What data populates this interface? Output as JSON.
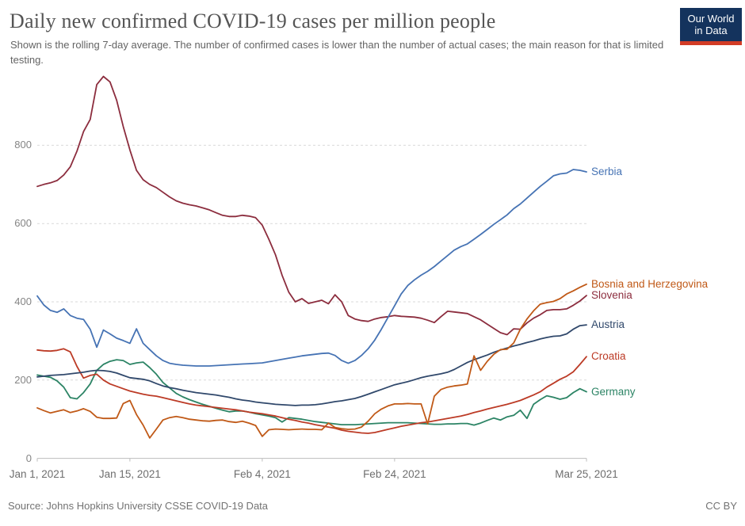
{
  "header": {
    "subtitle": "Shown is the rolling 7-day average. The number of confirmed cases is lower than the number of actual cases; the main reason for that is limited testing.",
    "logo": {
      "line1": "Our World",
      "line2": "in Data",
      "bg": "#14335D",
      "bar": "#D23C26"
    }
  },
  "footer": {
    "source": "Source: Johns Hopkins University CSSE COVID-19 Data",
    "license": "CC BY"
  },
  "chart_data": {
    "type": "line",
    "title": "Daily new confirmed COVID-19 cases per million people",
    "x_axis": {
      "unit": "date",
      "start_date": "Jan 1, 2021",
      "end_date": "Mar 25, 2021",
      "tick_labels": [
        "Jan 1, 2021",
        "Jan 15, 2021",
        "Feb 4, 2021",
        "Feb 24, 2021",
        "Mar 25, 2021"
      ],
      "tick_days": [
        0,
        14,
        34,
        54,
        83
      ],
      "range_days": [
        0,
        83
      ]
    },
    "y_axis": {
      "tick_labels": [
        "0",
        "200",
        "400",
        "600",
        "800"
      ],
      "tick_values": [
        0,
        200,
        400,
        600,
        800
      ],
      "range": [
        0,
        1000
      ]
    },
    "grid": "dashed horizontal gridlines",
    "legend_position": "right of line ends",
    "colors": {
      "grid": "#d9d9d9",
      "axis": "#bdbdbd"
    },
    "series": [
      {
        "name": "Serbia",
        "color": "#4673B4",
        "values": [
          415,
          392,
          378,
          373,
          382,
          365,
          358,
          355,
          330,
          284,
          328,
          318,
          307,
          301,
          294,
          331,
          294,
          278,
          262,
          250,
          243,
          240,
          238,
          237,
          236,
          236,
          236,
          237,
          238,
          239,
          240,
          241,
          242,
          243,
          244,
          247,
          250,
          253,
          256,
          259,
          262,
          264,
          266,
          268,
          269,
          263,
          250,
          243,
          250,
          263,
          280,
          302,
          330,
          360,
          390,
          420,
          442,
          456,
          468,
          478,
          490,
          504,
          518,
          532,
          541,
          548,
          560,
          572,
          585,
          598,
          610,
          622,
          638,
          650,
          665,
          680,
          695,
          708,
          722,
          727,
          729,
          738,
          736,
          732
        ]
      },
      {
        "name": "Bosnia and Herzegovina",
        "color": "#C05917",
        "values": [
          129,
          122,
          116,
          120,
          124,
          117,
          121,
          127,
          120,
          105,
          102,
          102,
          103,
          140,
          148,
          112,
          85,
          52,
          75,
          98,
          104,
          107,
          104,
          100,
          98,
          96,
          95,
          97,
          98,
          94,
          92,
          95,
          90,
          84,
          56,
          73,
          75,
          74,
          73,
          74,
          75,
          74,
          74,
          73,
          90,
          79,
          76,
          74,
          75,
          80,
          95,
          114,
          126,
          134,
          139,
          139,
          140,
          139,
          139,
          88,
          159,
          176,
          182,
          185,
          187,
          190,
          262,
          225,
          248,
          266,
          278,
          279,
          295,
          330,
          356,
          377,
          394,
          398,
          401,
          408,
          420,
          428,
          437,
          445
        ]
      },
      {
        "name": "Slovenia",
        "color": "#8C2D3E",
        "values": [
          695,
          700,
          704,
          710,
          724,
          745,
          785,
          835,
          866,
          955,
          976,
          962,
          915,
          848,
          788,
          736,
          712,
          700,
          692,
          680,
          668,
          658,
          652,
          648,
          645,
          640,
          635,
          628,
          621,
          618,
          618,
          621,
          619,
          615,
          596,
          560,
          520,
          468,
          425,
          400,
          408,
          396,
          400,
          404,
          395,
          418,
          400,
          365,
          356,
          352,
          350,
          356,
          360,
          362,
          365,
          363,
          362,
          361,
          358,
          353,
          347,
          362,
          376,
          374,
          372,
          370,
          362,
          354,
          343,
          332,
          321,
          316,
          331,
          330,
          346,
          358,
          367,
          378,
          380,
          380,
          382,
          391,
          402,
          416
        ]
      },
      {
        "name": "Austria",
        "color": "#30486B",
        "values": [
          208,
          210,
          212,
          213,
          214,
          216,
          218,
          220,
          223,
          225,
          224,
          222,
          218,
          212,
          206,
          204,
          202,
          198,
          191,
          185,
          181,
          178,
          174,
          171,
          168,
          166,
          164,
          162,
          159,
          156,
          152,
          149,
          147,
          144,
          142,
          140,
          138,
          137,
          136,
          135,
          136,
          136,
          137,
          139,
          142,
          145,
          147,
          150,
          153,
          158,
          164,
          170,
          176,
          182,
          188,
          192,
          196,
          201,
          206,
          210,
          213,
          216,
          220,
          227,
          236,
          245,
          252,
          258,
          264,
          271,
          277,
          282,
          287,
          291,
          296,
          300,
          305,
          309,
          312,
          313,
          318,
          330,
          339,
          341
        ]
      },
      {
        "name": "Croatia",
        "color": "#BC3B26",
        "values": [
          277,
          275,
          274,
          276,
          280,
          272,
          235,
          205,
          212,
          215,
          200,
          190,
          184,
          178,
          172,
          168,
          164,
          161,
          159,
          155,
          151,
          147,
          143,
          139,
          136,
          134,
          132,
          130,
          128,
          126,
          124,
          121,
          118,
          116,
          114,
          111,
          108,
          104,
          100,
          97,
          93,
          90,
          86,
          83,
          80,
          77,
          72,
          69,
          67,
          65,
          64,
          66,
          70,
          74,
          78,
          82,
          85,
          88,
          91,
          93,
          96,
          99,
          102,
          105,
          108,
          112,
          117,
          121,
          126,
          130,
          134,
          138,
          143,
          148,
          155,
          162,
          170,
          182,
          192,
          202,
          210,
          221,
          240,
          260
        ]
      },
      {
        "name": "Germany",
        "color": "#2C8465",
        "values": [
          213,
          210,
          207,
          198,
          182,
          155,
          152,
          168,
          190,
          225,
          240,
          248,
          252,
          250,
          240,
          244,
          246,
          232,
          215,
          194,
          180,
          166,
          157,
          150,
          144,
          138,
          133,
          128,
          123,
          119,
          121,
          121,
          118,
          114,
          111,
          108,
          104,
          93,
          104,
          102,
          100,
          97,
          94,
          92,
          90,
          88,
          86,
          86,
          86,
          87,
          88,
          89,
          90,
          91,
          91,
          91,
          91,
          90,
          89,
          88,
          87,
          87,
          88,
          88,
          89,
          89,
          85,
          90,
          97,
          103,
          98,
          106,
          110,
          123,
          102,
          138,
          150,
          160,
          156,
          151,
          155,
          168,
          178,
          170
        ]
      }
    ]
  }
}
